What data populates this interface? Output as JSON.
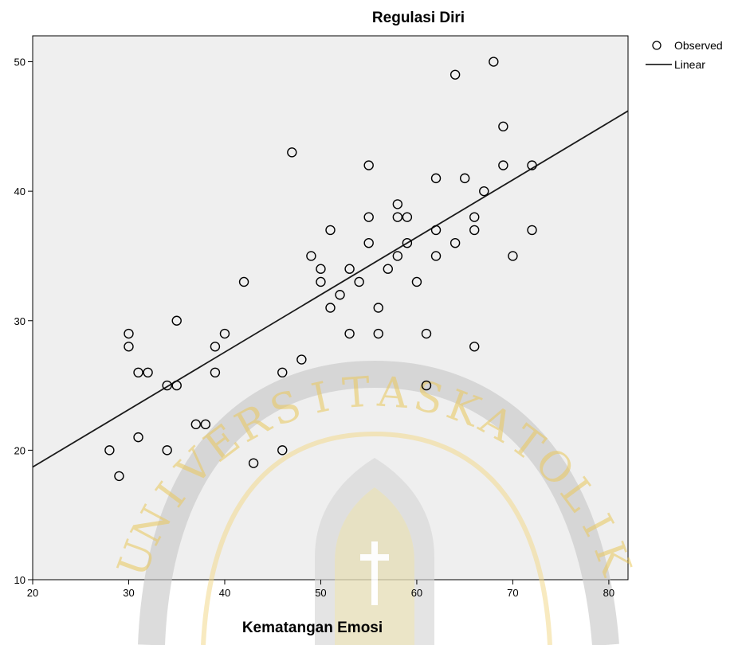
{
  "chart_data": {
    "type": "scatter",
    "title": "Regulasi Diri",
    "xlabel": "Kematangan Emosi",
    "ylabel": "",
    "xlim": [
      20,
      82
    ],
    "ylim": [
      10,
      52
    ],
    "xticks": [
      "20",
      "30",
      "40",
      "50",
      "60",
      "70",
      "80"
    ],
    "yticks": [
      "10",
      "20",
      "30",
      "40",
      "50"
    ],
    "grid": false,
    "legend_position": "top-right",
    "legend": [
      {
        "label": "Observed",
        "marker": "open-circle"
      },
      {
        "label": "Linear",
        "marker": "line"
      }
    ],
    "series": [
      {
        "name": "Observed",
        "points": [
          [
            28,
            20
          ],
          [
            29,
            18
          ],
          [
            30,
            29
          ],
          [
            30,
            28
          ],
          [
            31,
            26
          ],
          [
            31,
            21
          ],
          [
            32,
            26
          ],
          [
            34,
            25
          ],
          [
            34,
            20
          ],
          [
            35,
            30
          ],
          [
            35,
            25
          ],
          [
            37,
            22
          ],
          [
            38,
            22
          ],
          [
            39,
            28
          ],
          [
            39,
            26
          ],
          [
            40,
            29
          ],
          [
            42,
            33
          ],
          [
            43,
            19
          ],
          [
            46,
            26
          ],
          [
            46,
            20
          ],
          [
            47,
            43
          ],
          [
            48,
            27
          ],
          [
            49,
            35
          ],
          [
            50,
            34
          ],
          [
            50,
            33
          ],
          [
            51,
            37
          ],
          [
            51,
            31
          ],
          [
            52,
            32
          ],
          [
            53,
            34
          ],
          [
            53,
            29
          ],
          [
            54,
            33
          ],
          [
            55,
            42
          ],
          [
            55,
            38
          ],
          [
            55,
            36
          ],
          [
            56,
            31
          ],
          [
            56,
            29
          ],
          [
            57,
            34
          ],
          [
            58,
            39
          ],
          [
            58,
            38
          ],
          [
            58,
            35
          ],
          [
            59,
            38
          ],
          [
            59,
            36
          ],
          [
            60,
            33
          ],
          [
            61,
            29
          ],
          [
            61,
            25
          ],
          [
            62,
            41
          ],
          [
            62,
            37
          ],
          [
            62,
            35
          ],
          [
            64,
            49
          ],
          [
            64,
            36
          ],
          [
            65,
            41
          ],
          [
            66,
            38
          ],
          [
            66,
            37
          ],
          [
            66,
            28
          ],
          [
            67,
            40
          ],
          [
            68,
            50
          ],
          [
            69,
            45
          ],
          [
            69,
            42
          ],
          [
            70,
            35
          ],
          [
            72,
            42
          ],
          [
            72,
            37
          ]
        ]
      },
      {
        "name": "Linear",
        "line": [
          [
            20,
            18.7
          ],
          [
            82,
            46.2
          ]
        ]
      }
    ]
  },
  "watermark": {
    "text": "UNIVERSITAS KATOLIK",
    "color": "#e8c24a"
  }
}
